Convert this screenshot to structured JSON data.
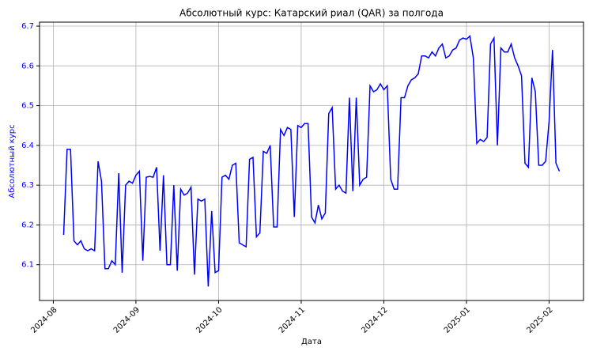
{
  "chart_data": {
    "type": "line",
    "title": "Абсолютный курс: Катарский риал (QAR) за полгода",
    "x_label": "Дата",
    "y_label": "Абсолютный курс",
    "series": [
      {
        "name": "Абсолютный курс",
        "color": "#0000ff",
        "values": [
          6.175,
          6.39,
          6.39,
          6.16,
          6.15,
          6.16,
          6.14,
          6.135,
          6.14,
          6.135,
          6.36,
          6.31,
          6.09,
          6.09,
          6.11,
          6.1,
          6.33,
          6.08,
          6.3,
          6.31,
          6.305,
          6.325,
          6.335,
          6.11,
          6.32,
          6.322,
          6.32,
          6.345,
          6.135,
          6.325,
          6.1,
          6.1,
          6.3,
          6.085,
          6.29,
          6.275,
          6.28,
          6.295,
          6.075,
          6.265,
          6.26,
          6.265,
          6.045,
          6.235,
          6.08,
          6.085,
          6.32,
          6.325,
          6.315,
          6.35,
          6.355,
          6.155,
          6.15,
          6.145,
          6.365,
          6.37,
          6.17,
          6.18,
          6.385,
          6.38,
          6.4,
          6.195,
          6.195,
          6.44,
          6.425,
          6.445,
          6.44,
          6.22,
          6.45,
          6.445,
          6.455,
          6.455,
          6.22,
          6.205,
          6.25,
          6.215,
          6.23,
          6.48,
          6.495,
          6.29,
          6.3,
          6.285,
          6.28,
          6.52,
          6.285,
          6.52,
          6.3,
          6.315,
          6.32,
          6.55,
          6.535,
          6.54,
          6.555,
          6.54,
          6.55,
          6.315,
          6.29,
          6.29,
          6.52,
          6.52,
          6.55,
          6.565,
          6.57,
          6.58,
          6.625,
          6.625,
          6.62,
          6.635,
          6.625,
          6.645,
          6.655,
          6.62,
          6.625,
          6.64,
          6.645,
          6.665,
          6.67,
          6.667,
          6.675,
          6.62,
          6.405,
          6.415,
          6.41,
          6.42,
          6.655,
          6.67,
          6.4,
          6.645,
          6.635,
          6.635,
          6.655,
          6.62,
          6.6,
          6.575,
          6.355,
          6.345,
          6.57,
          6.535,
          6.35,
          6.35,
          6.36,
          6.46,
          6.64,
          6.355,
          6.335
        ]
      }
    ],
    "xlim": [
      -7,
      151
    ],
    "xticks": [
      {
        "value": -3,
        "label": "2024-08"
      },
      {
        "value": 21,
        "label": "2024-09"
      },
      {
        "value": 45,
        "label": "2024-10"
      },
      {
        "value": 69,
        "label": "2024-11"
      },
      {
        "value": 93,
        "label": "2024-12"
      },
      {
        "value": 117,
        "label": "2025-01"
      },
      {
        "value": 141,
        "label": "2025-02"
      }
    ],
    "ylim": [
      6.01,
      6.71
    ],
    "yticks": [
      6.1,
      6.2,
      6.3,
      6.4,
      6.5,
      6.6,
      6.7
    ],
    "grid": true
  }
}
